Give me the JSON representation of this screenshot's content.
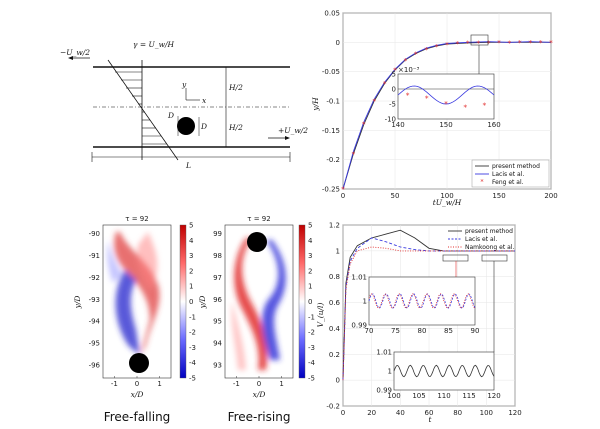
{
  "schematic": {
    "shear_label": "γ = U_w/H",
    "top_vel": "−U_w/2",
    "bottom_vel": "+U_w/2",
    "half_top": "H/2",
    "half_bottom": "H/2",
    "length": "L",
    "diameter_left": "D",
    "diameter_right": "D",
    "axis_y": "y",
    "axis_x": "x"
  },
  "chart_data": [
    {
      "id": "trajectory",
      "type": "line",
      "xlabel": "tU_w/H",
      "ylabel": "y/H",
      "xlim": [
        0,
        200
      ],
      "ylim": [
        -0.25,
        0.05
      ],
      "xticks": [
        "0",
        "50",
        "100",
        "150",
        "200"
      ],
      "yticks": [
        "-0.25",
        "-0.2",
        "-0.15",
        "-0.1",
        "-0.05",
        "0",
        "0.05"
      ],
      "legend_position": "bottom-right",
      "series": [
        {
          "name": "present method",
          "color": "#333333",
          "style": "solid",
          "x": [
            0,
            10,
            20,
            30,
            40,
            50,
            60,
            70,
            80,
            90,
            100,
            120,
            140,
            160,
            180,
            200
          ],
          "y": [
            -0.25,
            -0.19,
            -0.14,
            -0.1,
            -0.07,
            -0.047,
            -0.03,
            -0.019,
            -0.011,
            -0.006,
            -0.003,
            -0.001,
            0,
            0,
            0,
            0
          ]
        },
        {
          "name": "Lacis et al.",
          "color": "#3a3ae0",
          "style": "solid",
          "x": [
            0,
            10,
            20,
            30,
            40,
            50,
            60,
            70,
            80,
            90,
            100,
            120,
            140,
            160,
            180,
            200
          ],
          "y": [
            -0.25,
            -0.186,
            -0.136,
            -0.097,
            -0.068,
            -0.046,
            -0.029,
            -0.018,
            -0.01,
            -0.005,
            -0.002,
            0,
            0.001,
            0,
            0.001,
            0
          ]
        },
        {
          "name": "Feng et al.",
          "color": "#e23030",
          "style": "markers",
          "x": [
            0,
            10,
            20,
            30,
            40,
            50,
            60,
            70,
            80,
            90,
            100,
            110,
            120,
            130,
            140,
            150,
            160,
            170,
            180,
            190,
            200
          ],
          "y": [
            -0.25,
            -0.19,
            -0.139,
            -0.1,
            -0.07,
            -0.047,
            -0.031,
            -0.02,
            -0.012,
            -0.007,
            -0.004,
            -0.002,
            -0.001,
            -0.001,
            -0.001,
            0,
            -0.001,
            0,
            0,
            0,
            0
          ]
        }
      ],
      "inset": {
        "xlim": [
          140,
          160
        ],
        "ylim": [
          -10,
          5
        ],
        "scale_label": "×10⁻³",
        "xticks": [
          "140",
          "150",
          "160"
        ],
        "yticks": [
          "-10",
          "-5",
          "0",
          "5"
        ]
      }
    },
    {
      "id": "free-falling",
      "type": "heatmap",
      "title": "τ = 92",
      "caption": "Free-falling",
      "xlabel": "x/D",
      "ylabel": "y/D",
      "xticks": [
        "-1",
        "0",
        "1"
      ],
      "yticks": [
        "-90",
        "-91",
        "-92",
        "-93",
        "-94",
        "-95",
        "-96"
      ],
      "colorbar_ticks": [
        "5",
        "4",
        "3",
        "2",
        "1",
        "0",
        "-1",
        "-2",
        "-3",
        "-4",
        "-5"
      ]
    },
    {
      "id": "free-rising",
      "type": "heatmap",
      "title": "τ = 92",
      "caption": "Free-rising",
      "xlabel": "x/D",
      "ylabel": "y/D",
      "xticks": [
        "-1",
        "0",
        "1"
      ],
      "yticks": [
        "99",
        "98",
        "97",
        "96",
        "95",
        "94",
        "93"
      ],
      "colorbar_ticks": [
        "5",
        "4",
        "3",
        "2",
        "1",
        "0",
        "-1",
        "-2",
        "-3",
        "-4",
        "-5"
      ]
    },
    {
      "id": "velocity",
      "type": "line",
      "xlabel": "t",
      "ylabel": "V_(u/l)",
      "xlim": [
        0,
        120
      ],
      "ylim": [
        -0.2,
        1.2
      ],
      "xticks": [
        "0",
        "20",
        "40",
        "60",
        "80",
        "100",
        "120"
      ],
      "yticks": [
        "-0.2",
        "0",
        "0.2",
        "0.4",
        "0.6",
        "0.8",
        "1",
        "1.2"
      ],
      "legend_position": "top-right",
      "series": [
        {
          "name": "present method",
          "color": "#333333",
          "style": "solid",
          "x": [
            0,
            2,
            5,
            10,
            20,
            30,
            40,
            50,
            60,
            70,
            80,
            100,
            120
          ],
          "y": [
            0,
            0.75,
            0.95,
            1.04,
            1.1,
            1.13,
            1.16,
            1.1,
            1.02,
            1.0,
            1.0,
            1.0,
            1.0
          ]
        },
        {
          "name": "Lacis et al.",
          "color": "#3a3ae0",
          "style": "dashed",
          "x": [
            0,
            2,
            5,
            10,
            20,
            30,
            40,
            50,
            60,
            70,
            80,
            100,
            120
          ],
          "y": [
            0,
            0.72,
            0.92,
            1.02,
            1.1,
            1.07,
            1.03,
            1.01,
            1.0,
            1.0,
            1.0,
            1.0,
            1.0
          ]
        },
        {
          "name": "Namkoong et al.",
          "color": "#e23030",
          "style": "dotted",
          "x": [
            0,
            2,
            5,
            10,
            20,
            30,
            40,
            50,
            60,
            70,
            80,
            100,
            120
          ],
          "y": [
            0,
            0.7,
            0.9,
            1.0,
            1.03,
            1.02,
            1.0,
            1.0,
            1.0,
            1.0,
            1.0,
            1.0,
            1.0
          ]
        }
      ],
      "inset1": {
        "xlim": [
          70,
          90
        ],
        "ylim": [
          0.99,
          1.01
        ],
        "xticks": [
          "70",
          "75",
          "80",
          "85",
          "90"
        ],
        "yticks": [
          "1.01",
          "1",
          "0.99"
        ]
      },
      "inset2": {
        "xlim": [
          100,
          120
        ],
        "ylim": [
          0.99,
          1.01
        ],
        "xticks": [
          "100",
          "105",
          "110",
          "115",
          "120"
        ],
        "yticks": [
          "1.01",
          "1",
          "0.99"
        ]
      }
    }
  ]
}
